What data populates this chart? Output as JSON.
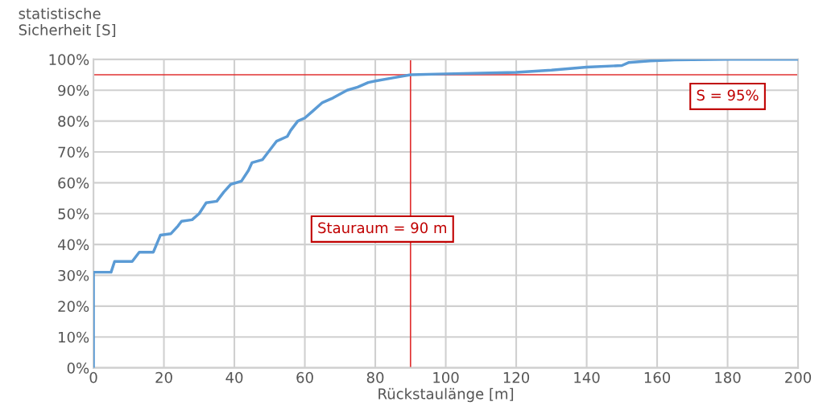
{
  "chart_data": {
    "type": "line",
    "ylabel": "statistische\nSicherheit [S]",
    "xlabel": "Rückstaulänge [m]",
    "series": [
      {
        "color": "#5b9bd5",
        "x": [
          0,
          0,
          5,
          6,
          11,
          13,
          17,
          19,
          22,
          24,
          25,
          28,
          30,
          32,
          35,
          37,
          39,
          42,
          44,
          45,
          48,
          50,
          52,
          55,
          56,
          58,
          60,
          62,
          65,
          68,
          72,
          75,
          78,
          80,
          85,
          90,
          100,
          110,
          120,
          130,
          140,
          150,
          152,
          158,
          165,
          180,
          200
        ],
        "values": [
          0,
          31,
          31,
          34.5,
          34.5,
          37.5,
          37.5,
          43,
          43.5,
          46,
          47.5,
          48,
          50,
          53.5,
          54,
          57,
          59.5,
          60.5,
          64,
          66.5,
          67.5,
          70.5,
          73.5,
          75,
          77,
          80,
          81,
          83,
          86,
          87.5,
          90,
          91,
          92.5,
          93,
          94,
          95,
          95.3,
          95.5,
          95.8,
          96.5,
          97.5,
          98,
          99,
          99.5,
          99.8,
          100,
          100
        ]
      }
    ],
    "xlim": [
      0,
      200
    ],
    "xticks": [
      0,
      20,
      40,
      60,
      80,
      100,
      120,
      140,
      160,
      180,
      200
    ],
    "ylim": [
      0,
      100
    ],
    "yticks": [
      {
        "value": 0,
        "label": "0%"
      },
      {
        "value": 10,
        "label": "10%"
      },
      {
        "value": 20,
        "label": "20%"
      },
      {
        "value": 30,
        "label": "30%"
      },
      {
        "value": 40,
        "label": "40%"
      },
      {
        "value": 50,
        "label": "50%"
      },
      {
        "value": 60,
        "label": "60%"
      },
      {
        "value": 70,
        "label": "70%"
      },
      {
        "value": 80,
        "label": "80%"
      },
      {
        "value": 90,
        "label": "90%"
      },
      {
        "value": 100,
        "label": "100%"
      }
    ],
    "grid": true,
    "marker": "none",
    "line_style": "solid",
    "ref_lines": [
      {
        "axis": "x",
        "value": 90,
        "label": "Stauraum = 90 m",
        "color": "#e03030"
      },
      {
        "axis": "y",
        "value": 95,
        "label": "S = 95%",
        "color": "#e03030"
      }
    ]
  }
}
